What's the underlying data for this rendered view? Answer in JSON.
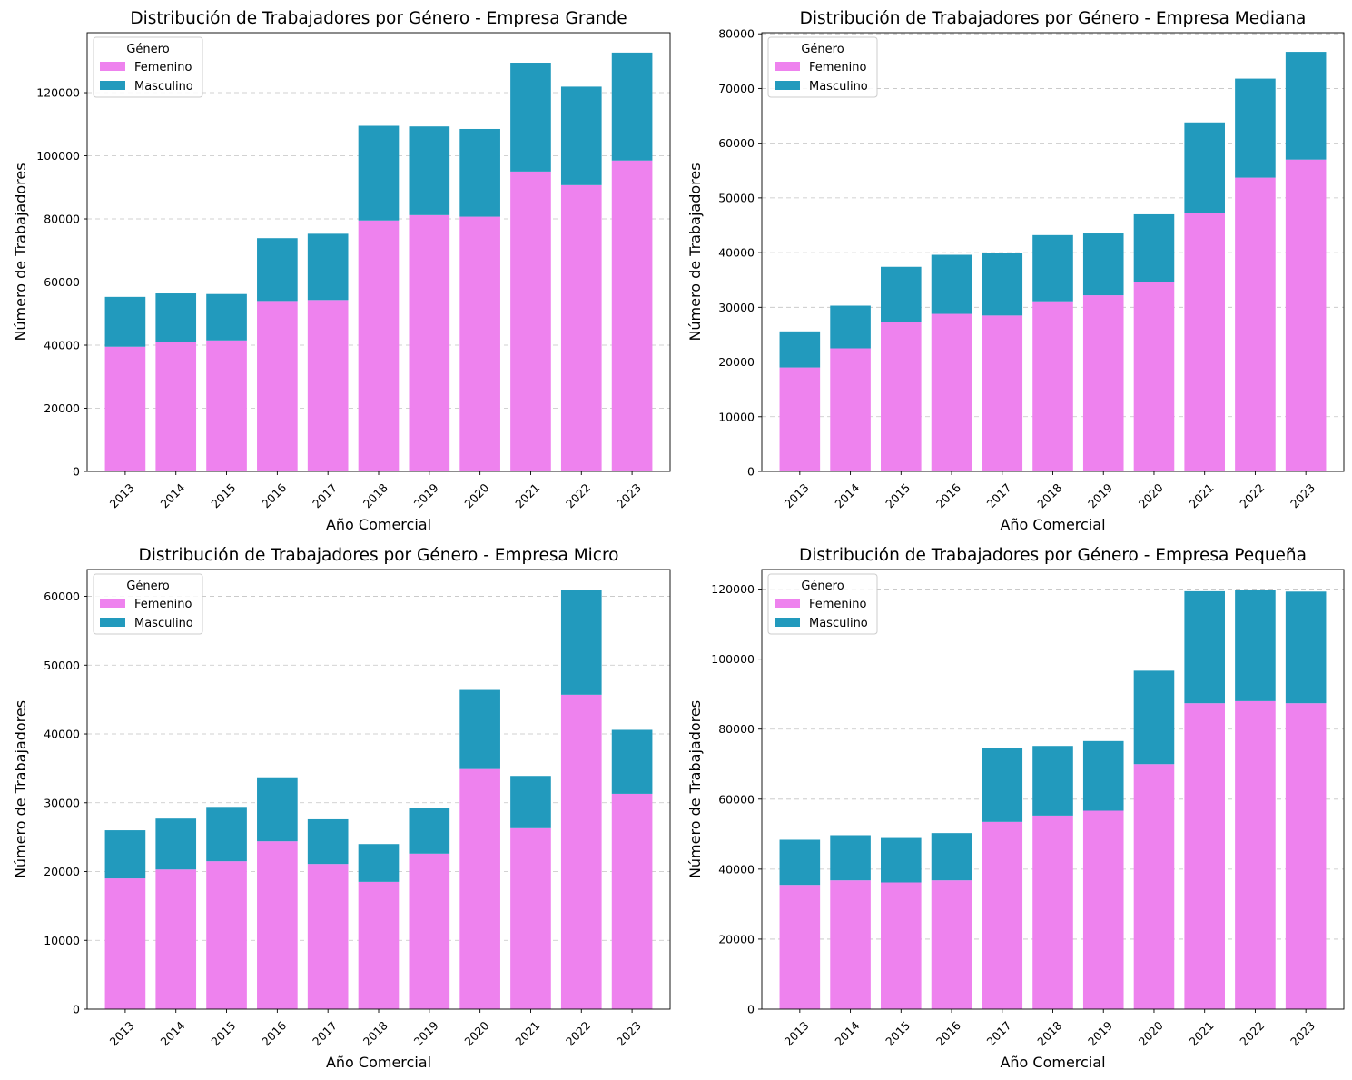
{
  "colors": {
    "femenino": "#ee82ee",
    "masculino": "#229abd"
  },
  "chart_data": [
    {
      "type": "bar",
      "stacked": true,
      "title": "Distribución de Trabajadores por Género - Empresa Grande",
      "xlabel": "Año Comercial",
      "ylabel": "Número de Trabajadores",
      "categories": [
        "2013",
        "2014",
        "2015",
        "2016",
        "2017",
        "2018",
        "2019",
        "2020",
        "2021",
        "2022",
        "2023"
      ],
      "ylim": [
        0,
        139000
      ],
      "yticks": [
        0,
        20000,
        40000,
        60000,
        80000,
        100000,
        120000
      ],
      "grid": "y",
      "legend": {
        "title": "Género",
        "position": "top-left"
      },
      "series": [
        {
          "name": "Femenino",
          "values": [
            39500,
            41000,
            41500,
            54000,
            54300,
            79500,
            81200,
            80700,
            95000,
            90700,
            98500
          ]
        },
        {
          "name": "Masculino",
          "values": [
            15800,
            15400,
            14700,
            19900,
            21000,
            30000,
            28100,
            27800,
            34500,
            31200,
            34200
          ]
        }
      ]
    },
    {
      "type": "bar",
      "stacked": true,
      "title": "Distribución de Trabajadores por Género - Empresa Mediana",
      "xlabel": "Año Comercial",
      "ylabel": "Número de Trabajadores",
      "categories": [
        "2013",
        "2014",
        "2015",
        "2016",
        "2017",
        "2018",
        "2019",
        "2020",
        "2021",
        "2022",
        "2023"
      ],
      "ylim": [
        0,
        80200
      ],
      "yticks": [
        0,
        10000,
        20000,
        30000,
        40000,
        50000,
        60000,
        70000,
        80000
      ],
      "grid": "y",
      "legend": {
        "title": "Género",
        "position": "top-left"
      },
      "series": [
        {
          "name": "Femenino",
          "values": [
            19000,
            22500,
            27300,
            28800,
            28500,
            31100,
            32200,
            34700,
            47300,
            53700,
            57000
          ]
        },
        {
          "name": "Masculino",
          "values": [
            6600,
            7800,
            10100,
            10800,
            11400,
            12100,
            11300,
            12300,
            16500,
            18100,
            19700
          ]
        }
      ]
    },
    {
      "type": "bar",
      "stacked": true,
      "title": "Distribución de Trabajadores por Género - Empresa Micro",
      "xlabel": "Año Comercial",
      "ylabel": "Número de Trabajadores",
      "categories": [
        "2013",
        "2014",
        "2015",
        "2016",
        "2017",
        "2018",
        "2019",
        "2020",
        "2021",
        "2022",
        "2023"
      ],
      "ylim": [
        0,
        63900
      ],
      "yticks": [
        0,
        10000,
        20000,
        30000,
        40000,
        50000,
        60000
      ],
      "grid": "y",
      "legend": {
        "title": "Género",
        "position": "top-left"
      },
      "series": [
        {
          "name": "Femenino",
          "values": [
            19000,
            20300,
            21500,
            24400,
            21100,
            18500,
            22600,
            34900,
            26300,
            45700,
            31300
          ]
        },
        {
          "name": "Masculino",
          "values": [
            7000,
            7400,
            7900,
            9300,
            6500,
            5500,
            6600,
            11500,
            7600,
            15200,
            9300
          ]
        }
      ]
    },
    {
      "type": "bar",
      "stacked": true,
      "title": "Distribución de Trabajadores por Género - Empresa Pequeña",
      "xlabel": "Año Comercial",
      "ylabel": "Número de Trabajadores",
      "categories": [
        "2013",
        "2014",
        "2015",
        "2016",
        "2017",
        "2018",
        "2019",
        "2020",
        "2021",
        "2022",
        "2023"
      ],
      "ylim": [
        0,
        125600
      ],
      "yticks": [
        0,
        20000,
        40000,
        60000,
        80000,
        100000,
        120000
      ],
      "grid": "y",
      "legend": {
        "title": "Género",
        "position": "top-left"
      },
      "series": [
        {
          "name": "Femenino",
          "values": [
            35500,
            36800,
            36200,
            36800,
            53500,
            55300,
            56700,
            70000,
            87400,
            88000,
            87400
          ]
        },
        {
          "name": "Masculino",
          "values": [
            12900,
            12900,
            12700,
            13500,
            21100,
            19900,
            19900,
            26700,
            32000,
            31800,
            31900
          ]
        }
      ]
    }
  ]
}
